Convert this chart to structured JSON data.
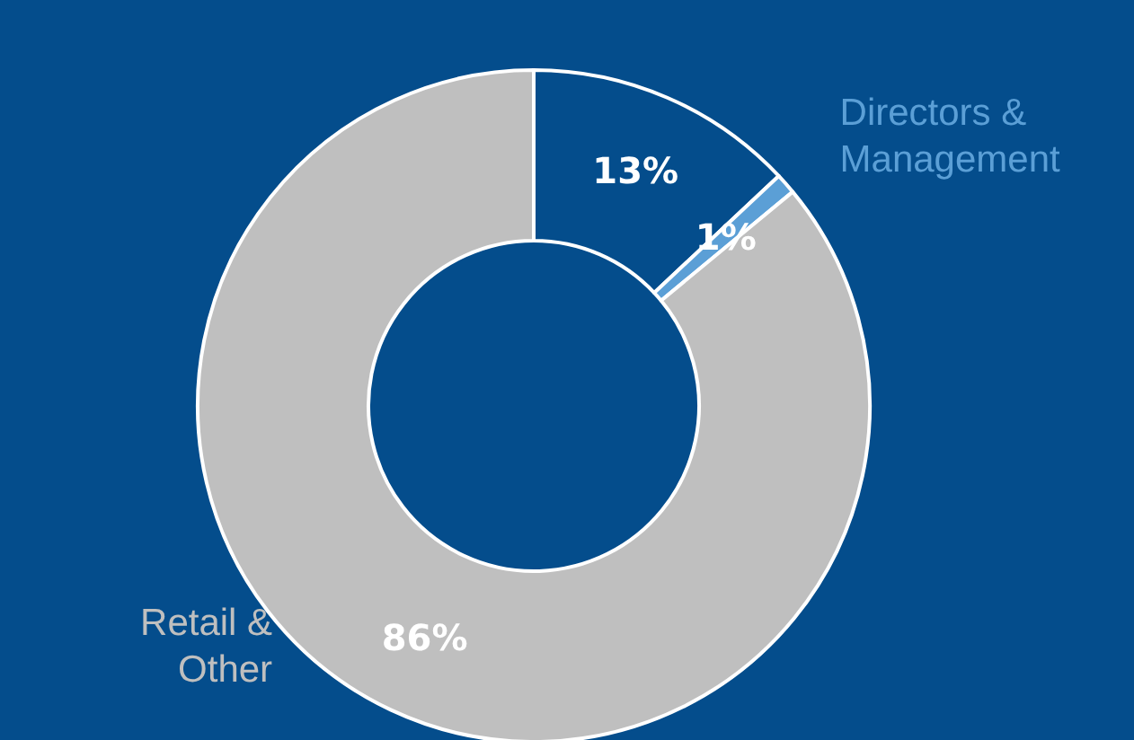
{
  "chart_data": {
    "type": "donut",
    "categories": [
      null,
      "Directors & Management",
      "Retail & Other"
    ],
    "values": [
      13,
      1,
      86
    ],
    "colors": [
      "#044d8c",
      "#5b9fd6",
      "#bfbfbf"
    ],
    "value_labels": [
      "13%",
      "1%",
      "86%"
    ],
    "legend": false
  }
}
